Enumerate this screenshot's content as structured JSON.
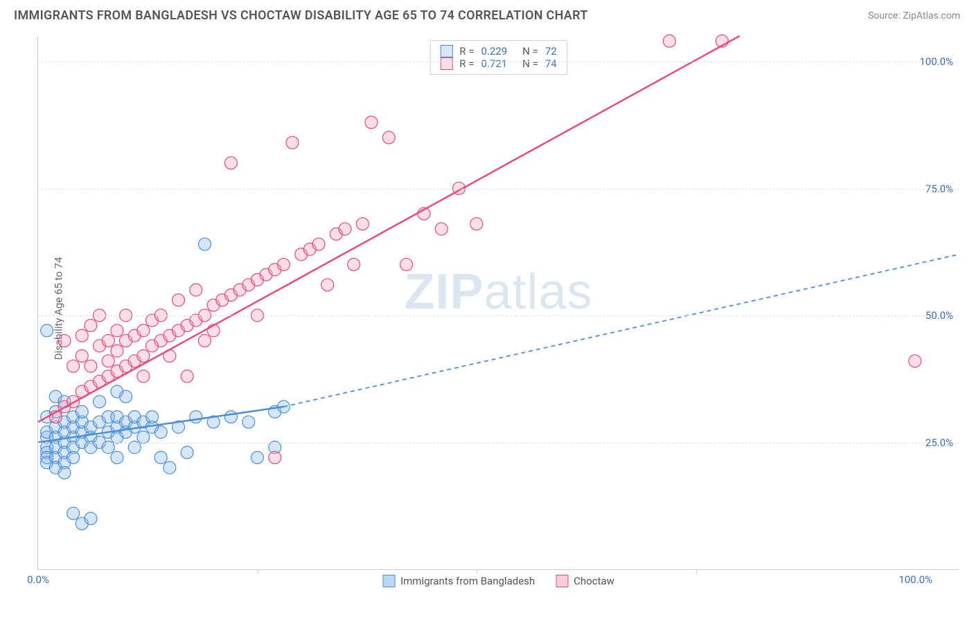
{
  "header": {
    "title": "IMMIGRANTS FROM BANGLADESH VS CHOCTAW DISABILITY AGE 65 TO 74 CORRELATION CHART",
    "source": "Source: ZipAtlas.com"
  },
  "chart": {
    "type": "scatter",
    "ylabel": "Disability Age 65 to 74",
    "xlim": [
      0,
      105
    ],
    "ylim": [
      0,
      105
    ],
    "x_ticks": [
      0,
      100
    ],
    "x_tick_labels": [
      "0.0%",
      "100.0%"
    ],
    "x_minor_ticks": [
      25,
      50,
      75
    ],
    "y_ticks": [
      25,
      50,
      75,
      100
    ],
    "y_tick_labels": [
      "25.0%",
      "50.0%",
      "75.0%",
      "100.0%"
    ],
    "marker_radius": 9,
    "marker_fill_opacity": 0.35,
    "grid_color": "#e0e0e0",
    "axis_color": "#cccccc",
    "tick_color_blue": "#3b6fb6",
    "background_color": "#ffffff",
    "watermark": "ZIPatlas",
    "series": [
      {
        "name": "Immigrants from Bangladesh",
        "color_stroke": "#4a8fd4",
        "color_fill": "#89b8e6",
        "R": "0.229",
        "N": "72",
        "trend": {
          "x1": 0,
          "y1": 25,
          "x2": 28,
          "y2": 32,
          "dash_x2": 105,
          "dash_y2": 62,
          "width": 2.5
        },
        "points": [
          [
            1,
            26
          ],
          [
            1,
            24
          ],
          [
            1,
            23
          ],
          [
            1,
            22
          ],
          [
            1,
            21
          ],
          [
            1,
            27
          ],
          [
            1,
            30
          ],
          [
            1,
            47
          ],
          [
            2,
            22
          ],
          [
            2,
            24
          ],
          [
            2,
            26
          ],
          [
            2,
            28
          ],
          [
            2,
            31
          ],
          [
            2,
            34
          ],
          [
            2,
            20
          ],
          [
            3,
            25
          ],
          [
            3,
            27
          ],
          [
            3,
            29
          ],
          [
            3,
            23
          ],
          [
            3,
            21
          ],
          [
            3,
            33
          ],
          [
            3,
            19
          ],
          [
            4,
            26
          ],
          [
            4,
            24
          ],
          [
            4,
            28
          ],
          [
            4,
            30
          ],
          [
            4,
            22
          ],
          [
            4,
            11
          ],
          [
            5,
            25
          ],
          [
            5,
            27
          ],
          [
            5,
            29
          ],
          [
            5,
            31
          ],
          [
            5,
            9
          ],
          [
            6,
            26
          ],
          [
            6,
            28
          ],
          [
            6,
            24
          ],
          [
            6,
            10
          ],
          [
            7,
            25
          ],
          [
            7,
            29
          ],
          [
            7,
            33
          ],
          [
            8,
            27
          ],
          [
            8,
            30
          ],
          [
            8,
            24
          ],
          [
            9,
            28
          ],
          [
            9,
            26
          ],
          [
            9,
            30
          ],
          [
            9,
            35
          ],
          [
            9,
            22
          ],
          [
            10,
            27
          ],
          [
            10,
            29
          ],
          [
            10,
            34
          ],
          [
            11,
            28
          ],
          [
            11,
            30
          ],
          [
            11,
            24
          ],
          [
            12,
            29
          ],
          [
            12,
            26
          ],
          [
            13,
            28
          ],
          [
            13,
            30
          ],
          [
            14,
            22
          ],
          [
            14,
            27
          ],
          [
            15,
            20
          ],
          [
            16,
            28
          ],
          [
            17,
            23
          ],
          [
            18,
            30
          ],
          [
            19,
            64
          ],
          [
            20,
            29
          ],
          [
            22,
            30
          ],
          [
            24,
            29
          ],
          [
            25,
            22
          ],
          [
            27,
            24
          ],
          [
            27,
            31
          ],
          [
            28,
            32
          ]
        ]
      },
      {
        "name": "Choctaw",
        "color_stroke": "#e74a7b",
        "color_fill": "#f4a0b8",
        "R": "0.721",
        "N": "74",
        "trend": {
          "x1": 0,
          "y1": 29,
          "x2": 80,
          "y2": 105,
          "width": 2.5
        },
        "points": [
          [
            2,
            30
          ],
          [
            3,
            32
          ],
          [
            3,
            45
          ],
          [
            4,
            33
          ],
          [
            4,
            40
          ],
          [
            5,
            35
          ],
          [
            5,
            42
          ],
          [
            5,
            46
          ],
          [
            6,
            36
          ],
          [
            6,
            40
          ],
          [
            6,
            48
          ],
          [
            7,
            37
          ],
          [
            7,
            44
          ],
          [
            7,
            50
          ],
          [
            8,
            38
          ],
          [
            8,
            45
          ],
          [
            8,
            41
          ],
          [
            9,
            39
          ],
          [
            9,
            43
          ],
          [
            9,
            47
          ],
          [
            10,
            40
          ],
          [
            10,
            45
          ],
          [
            10,
            50
          ],
          [
            11,
            41
          ],
          [
            11,
            46
          ],
          [
            12,
            42
          ],
          [
            12,
            47
          ],
          [
            12,
            38
          ],
          [
            13,
            44
          ],
          [
            13,
            49
          ],
          [
            14,
            45
          ],
          [
            14,
            50
          ],
          [
            15,
            46
          ],
          [
            15,
            42
          ],
          [
            16,
            47
          ],
          [
            16,
            53
          ],
          [
            17,
            48
          ],
          [
            17,
            38
          ],
          [
            18,
            49
          ],
          [
            18,
            55
          ],
          [
            19,
            50
          ],
          [
            19,
            45
          ],
          [
            20,
            52
          ],
          [
            20,
            47
          ],
          [
            21,
            53
          ],
          [
            22,
            54
          ],
          [
            22,
            80
          ],
          [
            23,
            55
          ],
          [
            24,
            56
          ],
          [
            25,
            57
          ],
          [
            25,
            50
          ],
          [
            26,
            58
          ],
          [
            27,
            59
          ],
          [
            27,
            22
          ],
          [
            28,
            60
          ],
          [
            29,
            84
          ],
          [
            30,
            62
          ],
          [
            31,
            63
          ],
          [
            32,
            64
          ],
          [
            33,
            56
          ],
          [
            34,
            66
          ],
          [
            35,
            67
          ],
          [
            36,
            60
          ],
          [
            37,
            68
          ],
          [
            38,
            88
          ],
          [
            40,
            85
          ],
          [
            42,
            60
          ],
          [
            44,
            70
          ],
          [
            46,
            67
          ],
          [
            48,
            75
          ],
          [
            50,
            68
          ],
          [
            72,
            104
          ],
          [
            78,
            104
          ],
          [
            100,
            41
          ]
        ]
      }
    ],
    "legend_bottom": [
      {
        "label": "Immigrants from Bangladesh",
        "stroke": "#4a8fd4",
        "fill": "#bcd7f0"
      },
      {
        "label": "Choctaw",
        "stroke": "#e74a7b",
        "fill": "#f8cdd9"
      }
    ]
  }
}
